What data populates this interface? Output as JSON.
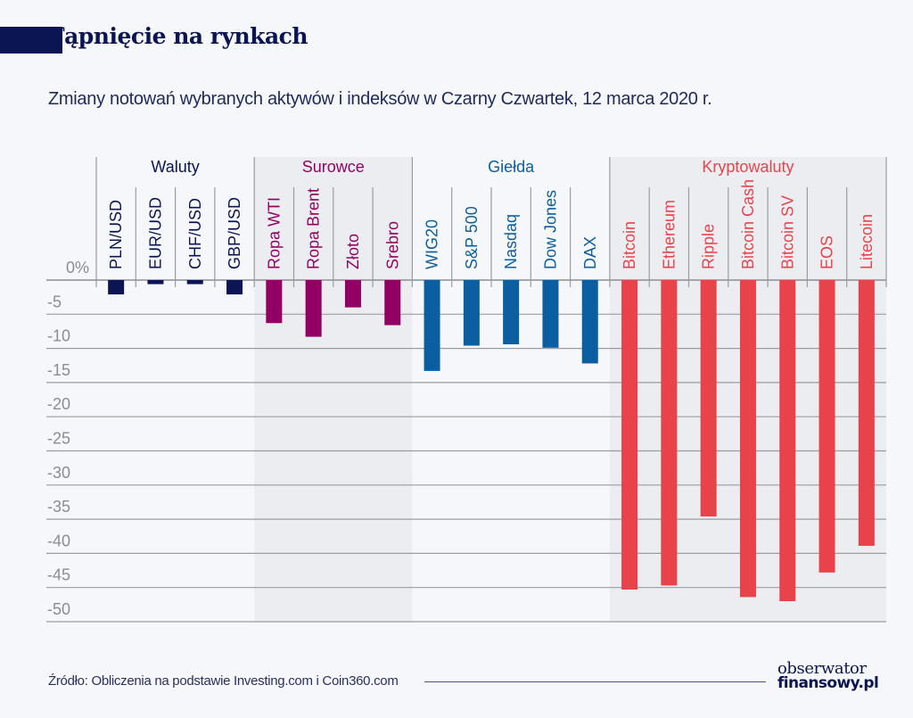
{
  "header": {
    "title": "Tąpnięcie na rynkach",
    "subtitle": "Zmiany notowań wybranych aktywów i indeksów w Czarny Czwartek, 12 marca 2020 r."
  },
  "footer": {
    "source": "Źródło: Obliczenia na podstawie Investing.com i Coin360.com",
    "logo_line1": "obserwator",
    "logo_line2": "finansowy.pl"
  },
  "chart_data": {
    "type": "bar",
    "title": "Tąpnięcie na rynkach",
    "subtitle": "Zmiany notowań wybranych aktywów i indeksów w Czarny Czwartek, 12 marca 2020 r.",
    "xlabel": "",
    "ylabel": "",
    "ylim": [
      -50,
      0
    ],
    "yticks": [
      0,
      -5,
      -10,
      -15,
      -20,
      -25,
      -30,
      -35,
      -40,
      -45,
      -50
    ],
    "ytick_labels": [
      "0%",
      "-5",
      "-10",
      "-15",
      "-20",
      "-25",
      "-30",
      "-35",
      "-40",
      "-45",
      "-50"
    ],
    "grid": true,
    "groups": [
      {
        "name": "Waluty",
        "color": "#0b1553",
        "shaded": false,
        "categories": [
          "PLN/USD",
          "EUR/USD",
          "CHF/USD",
          "GBP/USD"
        ],
        "values": [
          -2.1,
          -0.6,
          -0.6,
          -2.1
        ]
      },
      {
        "name": "Surowce",
        "color": "#930063",
        "shaded": true,
        "categories": [
          "Ropa WTI",
          "Ropa Brent",
          "Złoto",
          "Srebro"
        ],
        "values": [
          -6.3,
          -8.3,
          -4.0,
          -6.6
        ]
      },
      {
        "name": "Giełda",
        "color": "#0b5ea0",
        "shaded": false,
        "categories": [
          "WIG20",
          "S&P 500",
          "Nasdaq",
          "Dow Jones",
          "DAX"
        ],
        "values": [
          -13.3,
          -9.6,
          -9.4,
          -9.9,
          -12.2
        ]
      },
      {
        "name": "Kryptowaluty",
        "color": "#e8434b",
        "shaded": true,
        "categories": [
          "Bitcoin",
          "Ethereum",
          "Ripple",
          "Bitcoin Cash",
          "Bitcoin SV",
          "EOS",
          "Litecoin"
        ],
        "values": [
          -45.3,
          -44.7,
          -34.6,
          -46.4,
          -47.0,
          -42.8,
          -38.9
        ]
      }
    ]
  }
}
